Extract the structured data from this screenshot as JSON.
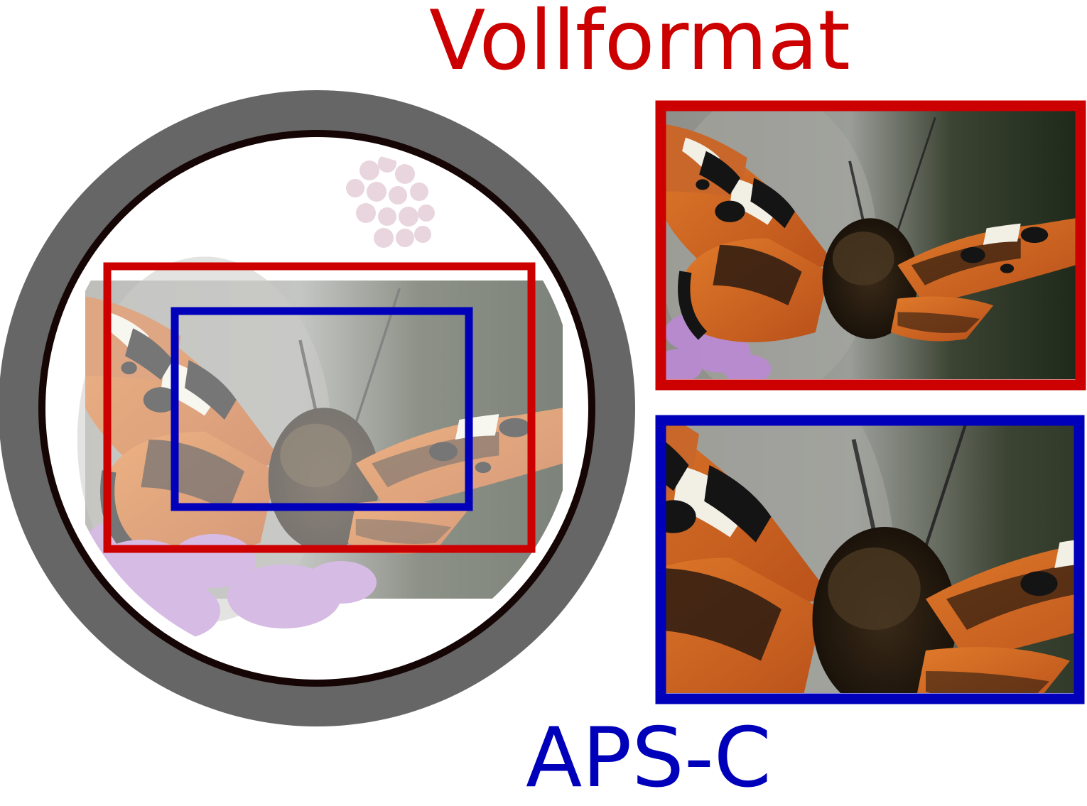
{
  "labels": {
    "full_frame": "Vollformat",
    "aps_c": "APS-C"
  },
  "colors": {
    "full_frame": "#cc0000",
    "aps_c": "#0000bb",
    "lens_barrel": "#666666",
    "lens_ring": "#160505"
  },
  "image_subject": "small tortoiseshell butterfly on purple flower"
}
